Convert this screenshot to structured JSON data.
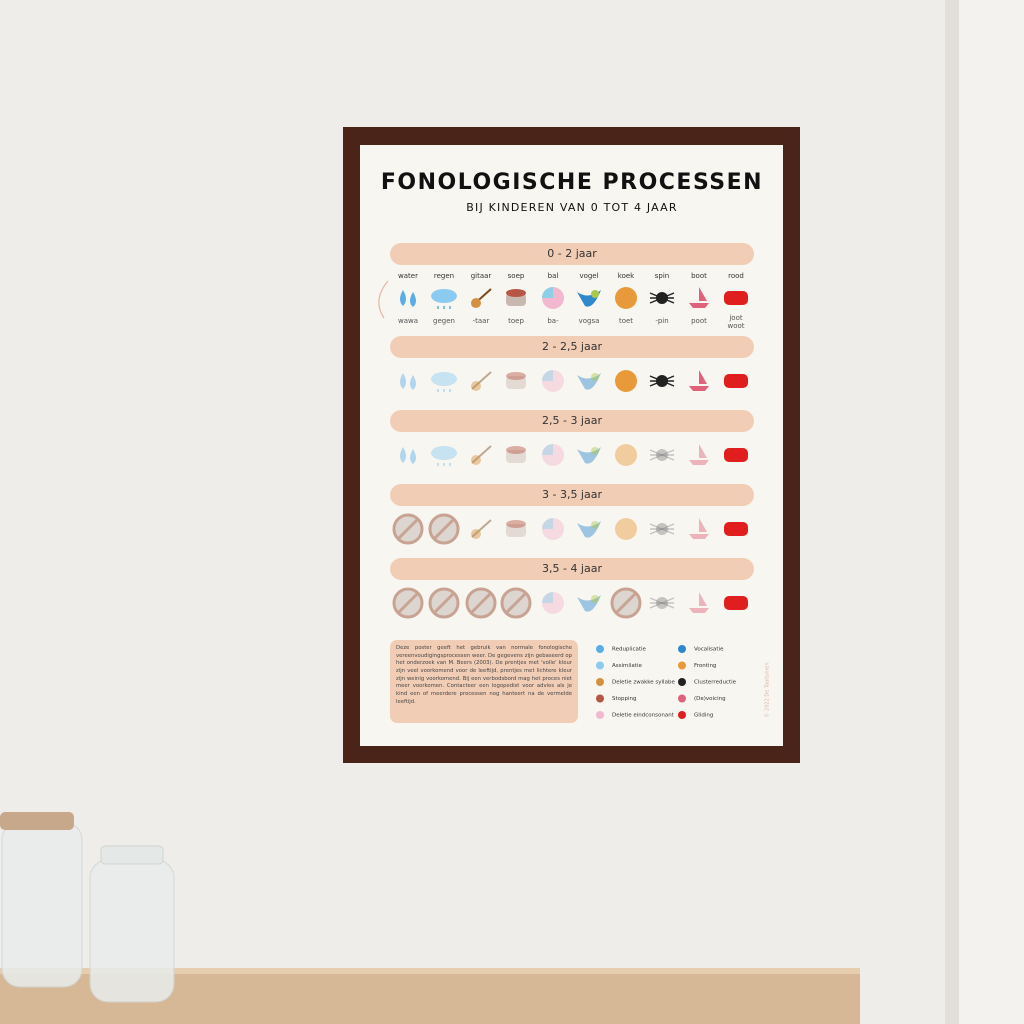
{
  "poster": {
    "title": "FONOLOGISCHE PROCESSEN",
    "subtitle": "BIJ KINDEREN VAN 0 TOT 4 JAAR",
    "sections": [
      "0 - 2 jaar",
      "2 - 2,5 jaar",
      "2,5 - 3 jaar",
      "3 - 3,5 jaar",
      "3,5 - 4 jaar"
    ],
    "words": [
      "water",
      "regen",
      "gitaar",
      "soep",
      "bal",
      "vogel",
      "koek",
      "spin",
      "boot",
      "rood"
    ],
    "child_forms": [
      "wawa",
      "gegen",
      "-taar",
      "toep",
      "ba-",
      "vogsa",
      "toet",
      "-pin",
      "poot",
      [
        "joot",
        "woot"
      ]
    ],
    "description": "Deze poster geeft het gebruik van normale fonologische vereenvoudigingsprocessen weer. De gegevens zijn gebaseerd op het onderzoek van M. Beers (2003). De prentjes met 'volle' kleur zijn veel voorkomend voor de leeftijd, prentjes met lichtere kleur zijn weinig voorkomend. Bij een verbodsbord mag het proces niet meer voorkomen. Contacteer een logopedist voor advies als je kind een of meerdere processen nog hanteert na de vermelde leeftijd.",
    "legend": [
      "Reduplicatie",
      "Assimilatie",
      "Deletie zwakke syllabe",
      "Stopping",
      "Deletie eindconsonant",
      "Vocalisatie",
      "Fronting",
      "Clusterreductie",
      "(De)voicing",
      "Gliding"
    ],
    "copyright": "© 2022 De Taaltuinen"
  }
}
